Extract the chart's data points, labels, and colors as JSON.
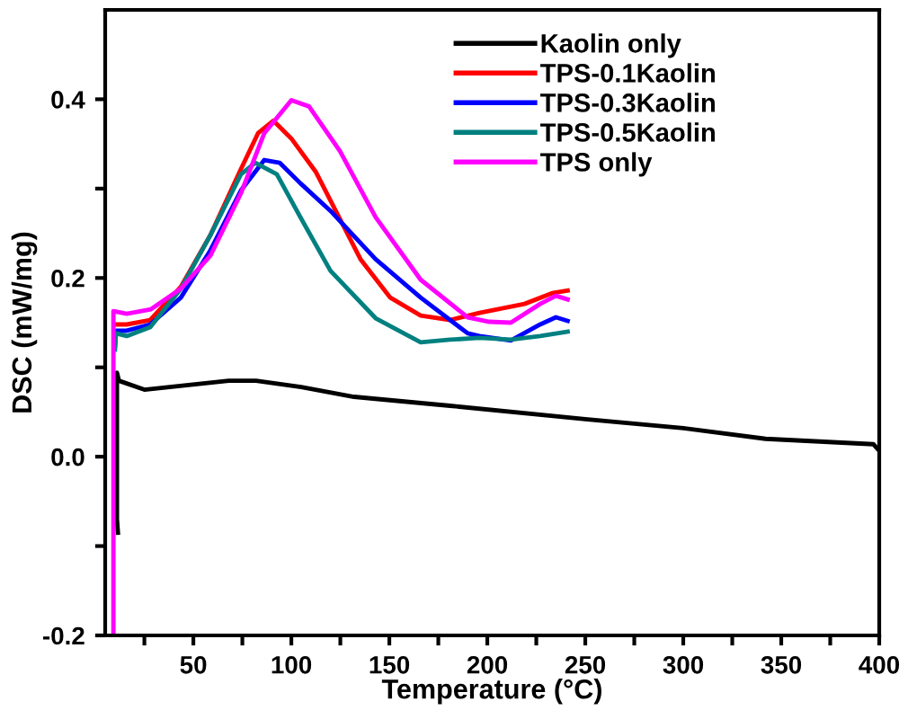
{
  "chart_data": {
    "type": "line",
    "xlabel": "Temperature (°C)",
    "ylabel": "DSC (mW/mg)",
    "xlim": [
      5,
      400
    ],
    "ylim": [
      -0.2,
      0.5
    ],
    "xticks": [
      {
        "value": 25,
        "label": null
      },
      50,
      {
        "value": 75,
        "label": null
      },
      100,
      {
        "value": 125,
        "label": null
      },
      150,
      {
        "value": 175,
        "label": null
      },
      200,
      {
        "value": 225,
        "label": null
      },
      250,
      {
        "value": 275,
        "label": null
      },
      300,
      {
        "value": 325,
        "label": null
      },
      350,
      {
        "value": 375,
        "label": null
      },
      400
    ],
    "yticks": [
      -0.2,
      {
        "value": -0.1,
        "label": null
      },
      {
        "value": 0,
        "label": "0.0"
      },
      {
        "value": 0.1,
        "label": null
      },
      0.2,
      {
        "value": 0.3,
        "label": null
      },
      0.4
    ],
    "grid": false,
    "legend": "top right",
    "line_style": "solid",
    "marker": "none",
    "series": [
      {
        "name": "Kaolin only",
        "color": "#000000",
        "x": [
          11.5,
          11,
          11,
          12,
          25,
          68,
          82,
          105,
          132,
          181,
          250,
          300,
          342,
          397,
          399
        ],
        "values": [
          -0.085,
          -0.07,
          0.094,
          0.085,
          0.075,
          0.085,
          0.085,
          0.078,
          0.067,
          0.057,
          0.042,
          0.032,
          0.02,
          0.014,
          0.009
        ]
      },
      {
        "name": "TPS-0.1Kaolin",
        "color": "#ff0000",
        "x": [
          10.5,
          16,
          28,
          43.6,
          58.7,
          74.3,
          83,
          90.8,
          100,
          112.4,
          135.3,
          150.5,
          166,
          181,
          196,
          219,
          233,
          241
        ],
        "values": [
          0.148,
          0.148,
          0.153,
          0.19,
          0.248,
          0.322,
          0.362,
          0.376,
          0.356,
          0.319,
          0.221,
          0.178,
          0.158,
          0.153,
          0.161,
          0.171,
          0.183,
          0.186
        ]
      },
      {
        "name": "TPS-0.3Kaolin",
        "color": "#0000ff",
        "x": [
          10,
          10.5,
          16,
          28,
          43.6,
          58.7,
          74.3,
          86.2,
          94,
          104.6,
          120,
          143,
          166,
          190,
          196,
          212,
          227,
          235,
          241
        ],
        "values": [
          0.125,
          0.141,
          0.141,
          0.148,
          0.178,
          0.231,
          0.298,
          0.332,
          0.329,
          0.306,
          0.275,
          0.221,
          0.178,
          0.138,
          0.135,
          0.13,
          0.148,
          0.156,
          0.152
        ]
      },
      {
        "name": "TPS-0.5Kaolin",
        "color": "#008080",
        "x": [
          10,
          10.5,
          16,
          28,
          43.6,
          58.7,
          74.3,
          81.6,
          92.6,
          104.6,
          120,
          143,
          166,
          181,
          196,
          212,
          227,
          241
        ],
        "values": [
          0.12,
          0.138,
          0.135,
          0.145,
          0.188,
          0.248,
          0.316,
          0.329,
          0.316,
          0.268,
          0.208,
          0.155,
          0.128,
          0.131,
          0.133,
          0.131,
          0.135,
          0.14
        ]
      },
      {
        "name": "TPS only",
        "color": "#ff00ff",
        "x": [
          9.2,
          9.2,
          16,
          28.4,
          43.6,
          58.7,
          74.3,
          86.2,
          100,
          109,
          124.8,
          143,
          166,
          190,
          201,
          212,
          227,
          235,
          241
        ],
        "values": [
          -0.2,
          0.163,
          0.16,
          0.165,
          0.188,
          0.225,
          0.295,
          0.362,
          0.399,
          0.392,
          0.342,
          0.268,
          0.198,
          0.156,
          0.151,
          0.15,
          0.171,
          0.18,
          0.176
        ]
      }
    ]
  }
}
